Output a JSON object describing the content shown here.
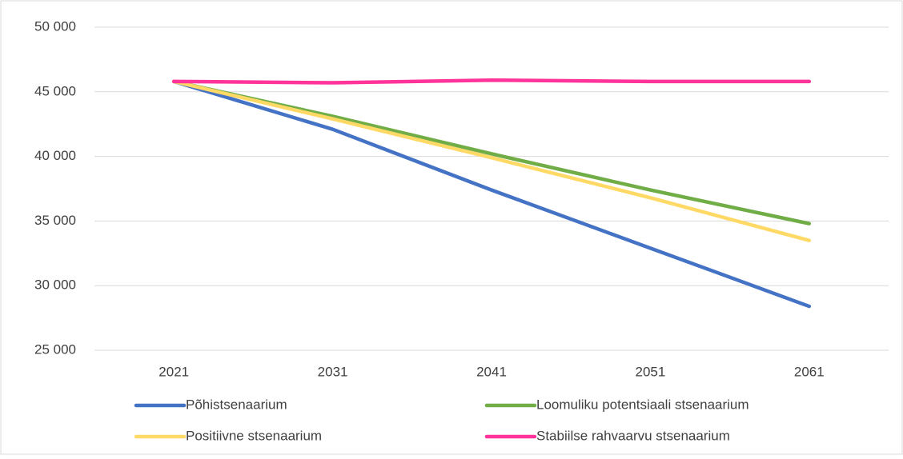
{
  "chart_data": {
    "type": "line",
    "categories": [
      "2021",
      "2031",
      "2041",
      "2051",
      "2061"
    ],
    "series": [
      {
        "name": "Põhistsenaarium",
        "color": "#4472c4",
        "values": [
          45800,
          42100,
          37400,
          32900,
          28400
        ]
      },
      {
        "name": "Loomuliku potentsiaali stsenaarium",
        "color": "#70ad47",
        "values": [
          45800,
          43100,
          40200,
          37400,
          34800
        ]
      },
      {
        "name": "Positiivne stsenaarium",
        "color": "#ffd966",
        "values": [
          45800,
          42900,
          39900,
          36800,
          33500
        ]
      },
      {
        "name": "Stabiilse rahvaarvu stsenaarium",
        "color": "#ff3399",
        "values": [
          45800,
          45700,
          45900,
          45800,
          45800
        ]
      }
    ],
    "ylim": [
      25000,
      50000
    ],
    "yticks": [
      {
        "value": 25000,
        "label": "25 000"
      },
      {
        "value": 30000,
        "label": "30 000"
      },
      {
        "value": 35000,
        "label": "35 000"
      },
      {
        "value": 40000,
        "label": "40 000"
      },
      {
        "value": 45000,
        "label": "45 000"
      },
      {
        "value": 50000,
        "label": "50 000"
      }
    ],
    "grid": true
  }
}
